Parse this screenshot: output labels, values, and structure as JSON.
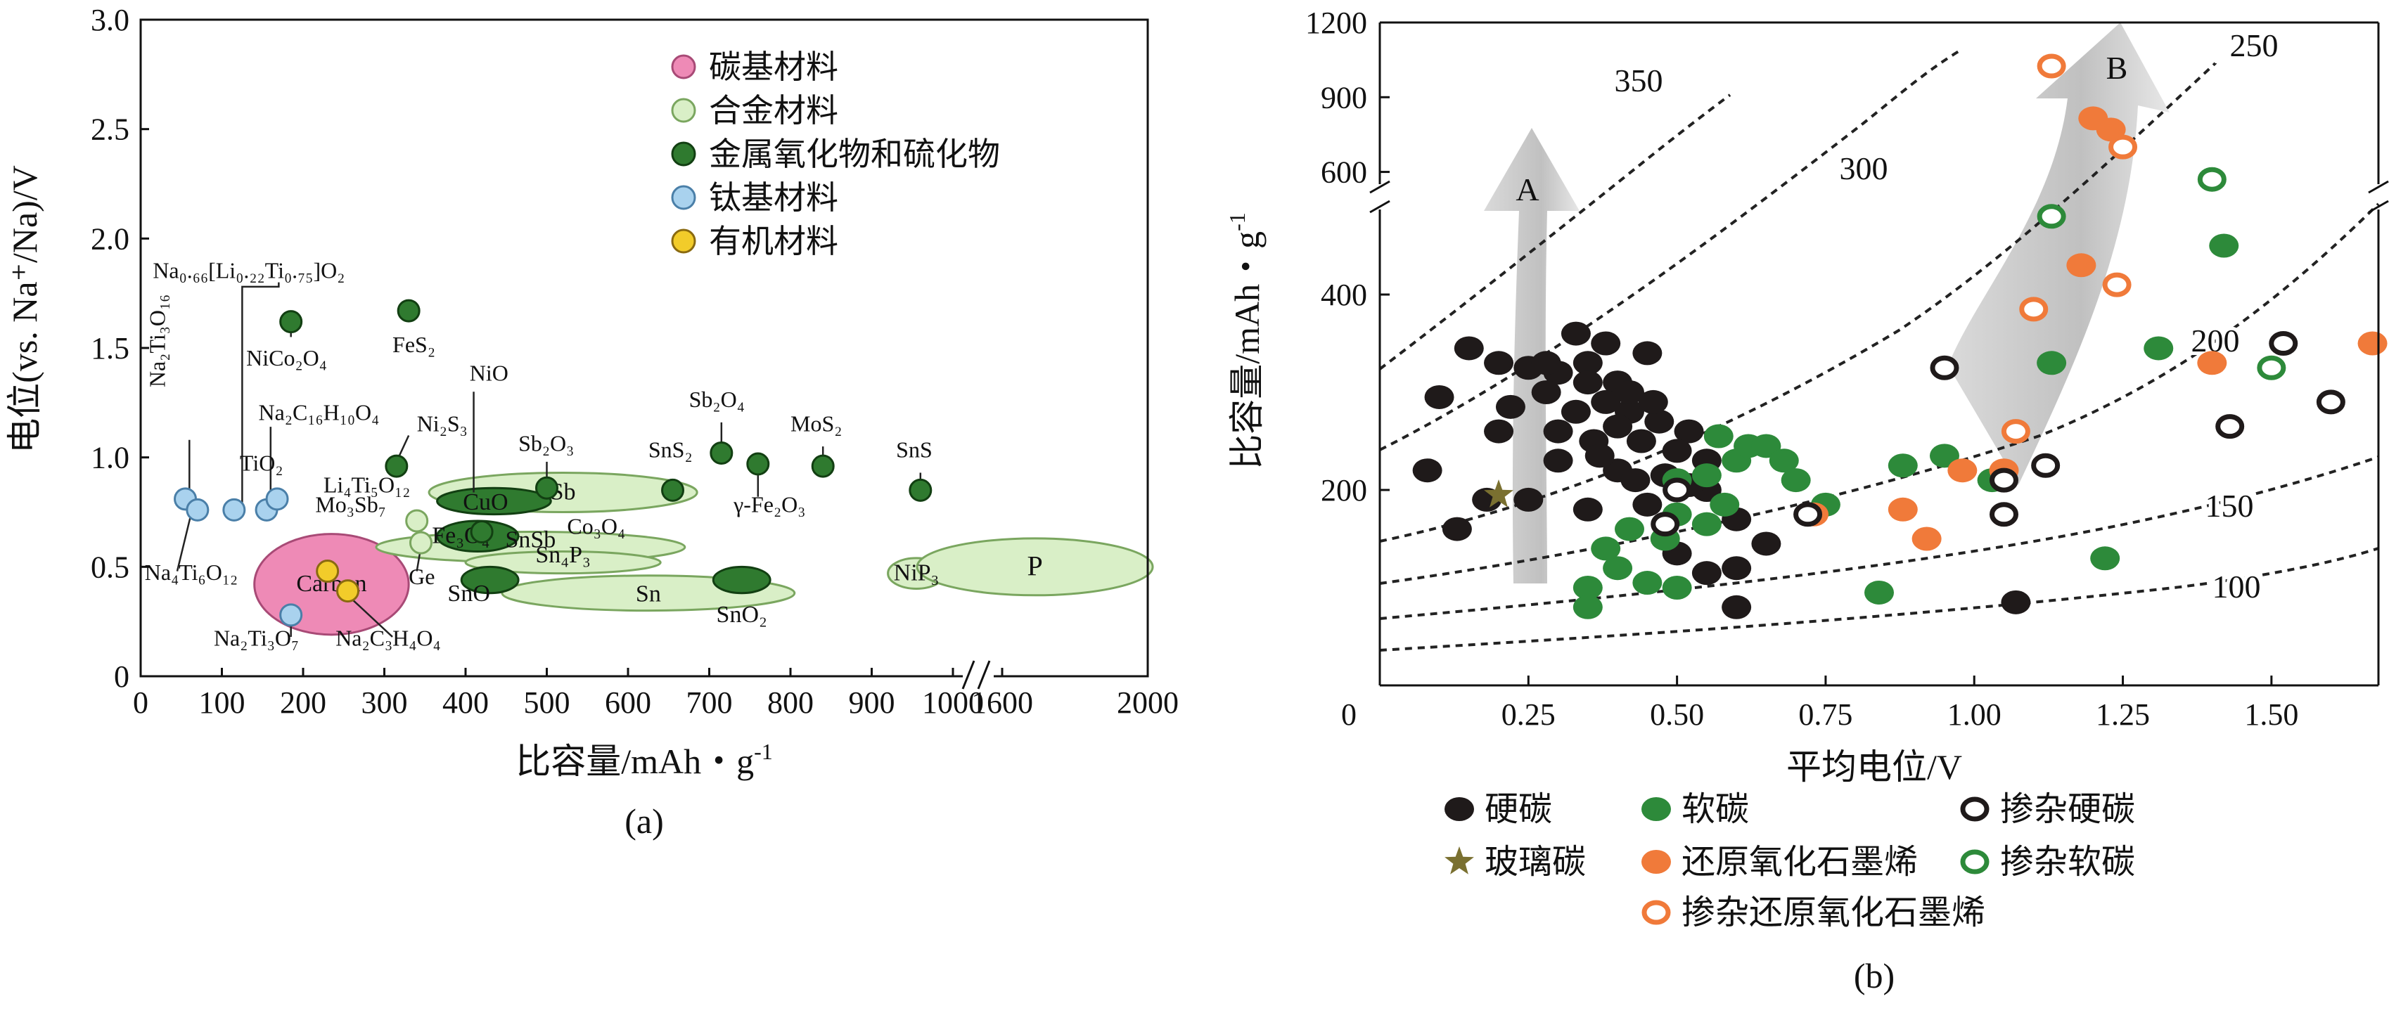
{
  "chart_data": [
    {
      "id": "a",
      "type": "scatter",
      "caption": "(a)",
      "xlabel": "比容量/mAh・g",
      "xlabel_sup": "-1",
      "ylabel": "电位(vs. Na⁺/Na)/V",
      "xlim": [
        0,
        2000
      ],
      "x_break": [
        1000,
        1600
      ],
      "ylim": [
        0,
        3.0
      ],
      "xticks": [
        0,
        100,
        200,
        300,
        400,
        500,
        600,
        700,
        800,
        900,
        1000,
        1600,
        2000
      ],
      "yticks": [
        "0",
        "0.5",
        "1.0",
        "1.5",
        "2.0",
        "2.5",
        "3.0"
      ],
      "ytick_values": [
        0,
        0.5,
        1.0,
        1.5,
        2.0,
        2.5,
        3.0
      ],
      "colors": {
        "carbon": "#ee8ab6",
        "alloy": "#d9efc7",
        "oxide": "#2f7a2f",
        "titanium": "#a9d2ee",
        "organic": "#f2cc2a"
      },
      "legend": [
        {
          "category": "carbon",
          "label": "碳基材料"
        },
        {
          "category": "alloy",
          "label": "合金材料"
        },
        {
          "category": "oxide",
          "label": "金属氧化物和硫化物"
        },
        {
          "category": "titanium",
          "label": "钛基材料"
        },
        {
          "category": "organic",
          "label": "有机材料"
        }
      ],
      "regions": [
        {
          "label": "Carbon",
          "category": "carbon",
          "x": 235,
          "y": 0.42,
          "rx": 95,
          "ry": 0.23
        },
        {
          "label": "Sb",
          "category": "alloy",
          "x": 520,
          "y": 0.84,
          "rx": 165,
          "ry": 0.09
        },
        {
          "label": "SnSb",
          "category": "alloy",
          "x": 480,
          "y": 0.59,
          "rx": 190,
          "ry": 0.07
        },
        {
          "label": "Sn₄P₃",
          "category": "alloy",
          "x": 520,
          "y": 0.52,
          "rx": 120,
          "ry": 0.05
        },
        {
          "label": "Sn",
          "category": "alloy",
          "x": 625,
          "y": 0.38,
          "rx": 180,
          "ry": 0.08
        },
        {
          "label": "NiP₃",
          "category": "alloy",
          "x": 955,
          "y": 0.47,
          "rx": 35,
          "ry": 0.07
        },
        {
          "label": "P",
          "category": "alloy",
          "x": 1690,
          "y": 0.5,
          "rx": 145,
          "ry": 0.13
        },
        {
          "label": "CuO",
          "category": "oxide",
          "x": 435,
          "y": 0.8,
          "rx": 70,
          "ry": 0.06
        },
        {
          "label": "Fe₃O₄",
          "category": "oxide",
          "x": 415,
          "y": 0.64,
          "rx": 50,
          "ry": 0.07
        },
        {
          "label": "SnO",
          "category": "oxide",
          "x": 430,
          "y": 0.44,
          "rx": 35,
          "ry": 0.06
        },
        {
          "label": "SnO₂",
          "category": "oxide",
          "x": 740,
          "y": 0.44,
          "rx": 35,
          "ry": 0.06
        }
      ],
      "points": [
        {
          "category": "titanium",
          "x": 55,
          "y": 0.81
        },
        {
          "category": "titanium",
          "x": 70,
          "y": 0.76
        },
        {
          "category": "titanium",
          "x": 115,
          "y": 0.76
        },
        {
          "category": "titanium",
          "x": 155,
          "y": 0.76
        },
        {
          "category": "titanium",
          "x": 168,
          "y": 0.81
        },
        {
          "category": "titanium",
          "x": 185,
          "y": 0.28
        },
        {
          "category": "oxide",
          "x": 185,
          "y": 1.62
        },
        {
          "category": "oxide",
          "x": 330,
          "y": 1.67
        },
        {
          "category": "oxide",
          "x": 315,
          "y": 0.96
        },
        {
          "category": "oxide",
          "x": 500,
          "y": 0.86
        },
        {
          "category": "oxide",
          "x": 420,
          "y": 0.66
        },
        {
          "category": "oxide",
          "x": 655,
          "y": 0.85
        },
        {
          "category": "oxide",
          "x": 715,
          "y": 1.02
        },
        {
          "category": "oxide",
          "x": 760,
          "y": 0.97
        },
        {
          "category": "oxide",
          "x": 840,
          "y": 0.96
        },
        {
          "category": "oxide",
          "x": 960,
          "y": 0.85
        },
        {
          "category": "alloy",
          "x": 340,
          "y": 0.71
        },
        {
          "category": "alloy",
          "x": 345,
          "y": 0.61
        },
        {
          "category": "organic",
          "x": 230,
          "y": 0.48
        },
        {
          "category": "organic",
          "x": 255,
          "y": 0.39
        }
      ],
      "labels": [
        {
          "text": "Na₀.₆₆[Li₀.₂₂Ti₀.₇₅]O₂",
          "x": 15,
          "y": 1.82
        },
        {
          "text": "Na₂Ti₃O₁₆",
          "x": 30,
          "y": 1.32,
          "rotate": -90
        },
        {
          "text": "NiCo₂O₄",
          "x": 130,
          "y": 1.42
        },
        {
          "text": "FeS₂",
          "x": 310,
          "y": 1.48
        },
        {
          "text": "NiO",
          "x": 405,
          "y": 1.35
        },
        {
          "text": "Na₂C₁₆H₁₀O₄",
          "x": 145,
          "y": 1.17
        },
        {
          "text": "Ni₂S₃",
          "x": 340,
          "y": 1.12
        },
        {
          "text": "TiO₂",
          "x": 122,
          "y": 0.94
        },
        {
          "text": "Sb₂O₃",
          "x": 465,
          "y": 1.03
        },
        {
          "text": "Sb₂O₄",
          "x": 675,
          "y": 1.23
        },
        {
          "text": "SnS₂",
          "x": 625,
          "y": 1.0
        },
        {
          "text": "MoS₂",
          "x": 800,
          "y": 1.12
        },
        {
          "text": "SnS",
          "x": 930,
          "y": 1.0
        },
        {
          "text": "Li₄Ti₅O₁₂",
          "x": 225,
          "y": 0.84
        },
        {
          "text": "Mo₃Sb₇",
          "x": 215,
          "y": 0.75
        },
        {
          "text": "Co₃O₄",
          "x": 525,
          "y": 0.65
        },
        {
          "text": "γ-Fe₂O₃",
          "x": 730,
          "y": 0.75
        },
        {
          "text": "Na₄Ti₆O₁₂",
          "x": 5,
          "y": 0.44
        },
        {
          "text": "Ge",
          "x": 330,
          "y": 0.42
        },
        {
          "text": "Na₂Ti₃O₇",
          "x": 90,
          "y": 0.14
        },
        {
          "text": "Na₂C₃H₄O₄",
          "x": 240,
          "y": 0.14
        }
      ]
    },
    {
      "id": "b",
      "type": "scatter",
      "caption": "(b)",
      "xlabel": "平均电位/V",
      "ylabel": "比容量/mAh・g",
      "ylabel_sup": "-1",
      "xlim": [
        0,
        1.68
      ],
      "xticks": [
        "0.25",
        "0.50",
        "0.75",
        "1.00",
        "1.25",
        "1.50"
      ],
      "xtick_values": [
        0.25,
        0.5,
        0.75,
        1.0,
        1.25,
        1.5
      ],
      "x_origin_label": "0",
      "yticks_lower": [
        "200",
        "400"
      ],
      "ytick_lower_values": [
        200,
        400
      ],
      "yticks_upper": [
        "600",
        "900",
        "1200"
      ],
      "ytick_upper_values": [
        600,
        900,
        1200
      ],
      "ylim_lower": [
        0,
        500
      ],
      "ylim_upper": [
        500,
        1200
      ],
      "energy_density_contours": [
        "100",
        "150",
        "200",
        "250",
        "300",
        "350"
      ],
      "arrows": [
        {
          "label": "A"
        },
        {
          "label": "B"
        }
      ],
      "colors": {
        "hard_carbon": "#1f1a1a",
        "soft_carbon": "#2d8a3a",
        "rgo": "#f07a3a",
        "glassy_carbon": "#7a7030",
        "contour": "#222222",
        "arrow": "#c8c8c8"
      },
      "legend": [
        {
          "category": "hard_carbon",
          "style": "filled",
          "label": "硬碳"
        },
        {
          "category": "soft_carbon",
          "style": "filled",
          "label": "软碳"
        },
        {
          "category": "hard_carbon",
          "style": "ring",
          "label": "掺杂硬碳"
        },
        {
          "category": "glassy_carbon",
          "style": "star",
          "label": "玻璃碳"
        },
        {
          "category": "rgo",
          "style": "filled",
          "label": "还原氧化石墨烯"
        },
        {
          "category": "soft_carbon",
          "style": "ring",
          "label": "掺杂软碳"
        },
        {
          "category": "rgo",
          "style": "ring",
          "label": "掺杂还原氧化石墨烯"
        }
      ],
      "series": [
        {
          "name": "硬碳",
          "category": "hard_carbon",
          "style": "filled",
          "points": [
            [
              0.15,
              345
            ],
            [
              0.2,
              330
            ],
            [
              0.25,
              325
            ],
            [
              0.3,
              320
            ],
            [
              0.35,
              330
            ],
            [
              0.4,
              310
            ],
            [
              0.28,
              300
            ],
            [
              0.33,
              280
            ],
            [
              0.38,
              290
            ],
            [
              0.42,
              280
            ],
            [
              0.47,
              270
            ],
            [
              0.52,
              260
            ],
            [
              0.3,
              260
            ],
            [
              0.36,
              250
            ],
            [
              0.44,
              250
            ],
            [
              0.5,
              240
            ],
            [
              0.55,
              230
            ],
            [
              0.33,
              360
            ],
            [
              0.38,
              350
            ],
            [
              0.45,
              340
            ],
            [
              0.3,
              230
            ],
            [
              0.4,
              220
            ],
            [
              0.48,
              215
            ],
            [
              0.55,
              200
            ],
            [
              0.25,
              190
            ],
            [
              0.35,
              180
            ],
            [
              0.45,
              185
            ],
            [
              0.6,
              170
            ],
            [
              0.65,
              145
            ],
            [
              0.5,
              135
            ],
            [
              0.6,
              120
            ],
            [
              0.55,
              115
            ],
            [
              0.6,
              80
            ],
            [
              0.1,
              295
            ],
            [
              0.08,
              220
            ],
            [
              0.18,
              190
            ],
            [
              0.13,
              160
            ],
            [
              0.2,
              260
            ],
            [
              0.22,
              285
            ],
            [
              0.28,
              330
            ],
            [
              0.35,
              310
            ],
            [
              0.42,
              300
            ],
            [
              0.46,
              290
            ],
            [
              0.4,
              265
            ],
            [
              0.37,
              235
            ],
            [
              0.43,
              210
            ],
            [
              0.52,
              205
            ],
            [
              1.07,
              85
            ]
          ]
        },
        {
          "name": "软碳",
          "category": "soft_carbon",
          "style": "filled",
          "points": [
            [
              0.35,
              100
            ],
            [
              0.35,
              80
            ],
            [
              0.4,
              120
            ],
            [
              0.45,
              105
            ],
            [
              0.5,
              100
            ],
            [
              0.38,
              140
            ],
            [
              0.42,
              160
            ],
            [
              0.48,
              150
            ],
            [
              0.5,
              175
            ],
            [
              0.55,
              165
            ],
            [
              0.58,
              185
            ],
            [
              0.5,
              210
            ],
            [
              0.55,
              215
            ],
            [
              0.6,
              230
            ],
            [
              0.62,
              245
            ],
            [
              0.57,
              255
            ],
            [
              0.65,
              245
            ],
            [
              0.68,
              230
            ],
            [
              0.7,
              210
            ],
            [
              0.75,
              185
            ],
            [
              0.84,
              95
            ],
            [
              0.88,
              225
            ],
            [
              0.95,
              235
            ],
            [
              1.03,
              210
            ],
            [
              1.13,
              330
            ],
            [
              1.22,
              130
            ],
            [
              1.31,
              345
            ],
            [
              1.42,
              450
            ]
          ]
        },
        {
          "name": "玻璃碳",
          "category": "glassy_carbon",
          "style": "star",
          "points": [
            [
              0.2,
              195
            ]
          ]
        },
        {
          "name": "还原氧化石墨烯",
          "category": "rgo",
          "style": "filled",
          "points": [
            [
              0.73,
              175
            ],
            [
              0.88,
              180
            ],
            [
              0.92,
              150
            ],
            [
              0.98,
              220
            ],
            [
              1.05,
              220
            ],
            [
              1.18,
              430
            ],
            [
              1.2,
              815
            ],
            [
              1.23,
              770
            ],
            [
              1.4,
              330
            ],
            [
              1.67,
              350
            ]
          ]
        },
        {
          "name": "掺杂硬碳",
          "category": "hard_carbon",
          "style": "ring",
          "points": [
            [
              0.5,
              200
            ],
            [
              0.48,
              165
            ],
            [
              0.72,
              175
            ],
            [
              0.95,
              325
            ],
            [
              1.05,
              210
            ],
            [
              1.05,
              175
            ],
            [
              1.12,
              225
            ],
            [
              1.43,
              265
            ],
            [
              1.52,
              350
            ],
            [
              1.6,
              290
            ]
          ]
        },
        {
          "name": "掺杂软碳",
          "category": "soft_carbon",
          "style": "ring",
          "points": [
            [
              1.13,
              480
            ],
            [
              1.4,
              570
            ],
            [
              1.5,
              325
            ]
          ]
        },
        {
          "name": "掺杂还原氧化石墨烯",
          "category": "rgo",
          "style": "ring",
          "points": [
            [
              1.1,
              385
            ],
            [
              1.07,
              260
            ],
            [
              1.13,
              1025
            ],
            [
              1.24,
              410
            ],
            [
              1.25,
              700
            ]
          ]
        }
      ]
    }
  ]
}
